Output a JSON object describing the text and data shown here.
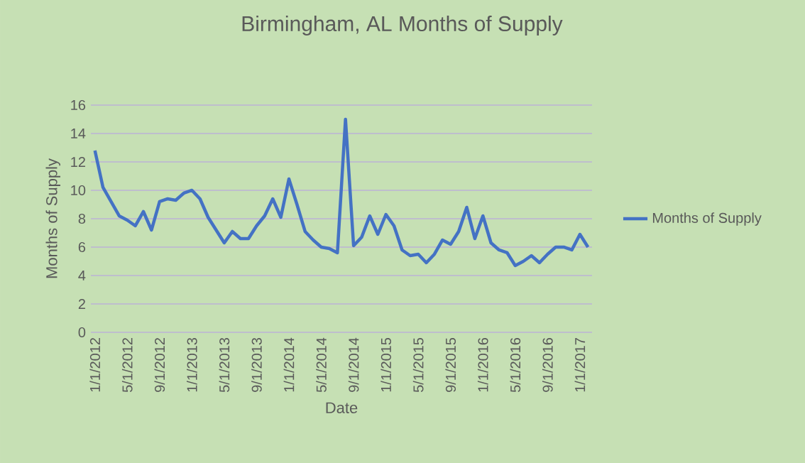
{
  "chart_data": {
    "type": "line",
    "title": "Birmingham, AL Months of Supply",
    "xlabel": "Date",
    "ylabel": "Months of Supply",
    "categories": [
      "1/1/2012",
      null,
      null,
      null,
      "5/1/2012",
      null,
      null,
      null,
      "9/1/2012",
      null,
      null,
      null,
      "1/1/2013",
      null,
      null,
      null,
      "5/1/2013",
      null,
      null,
      null,
      "9/1/2013",
      null,
      null,
      null,
      "1/1/2014",
      null,
      null,
      null,
      "5/1/2014",
      null,
      null,
      null,
      "9/1/2014",
      null,
      null,
      null,
      "1/1/2015",
      null,
      null,
      null,
      "5/1/2015",
      null,
      null,
      null,
      "9/1/2015",
      null,
      null,
      null,
      "1/1/2016",
      null,
      null,
      null,
      "5/1/2016",
      null,
      null,
      null,
      "9/1/2016",
      null,
      null,
      null,
      "1/1/2017",
      null
    ],
    "series": [
      {
        "name": "Months of Supply",
        "color": "#4472c4",
        "values": [
          12.8,
          10.2,
          9.2,
          8.2,
          7.9,
          7.5,
          8.5,
          7.2,
          9.2,
          9.4,
          9.3,
          9.8,
          10.0,
          9.4,
          8.1,
          7.2,
          6.3,
          7.1,
          6.6,
          6.6,
          7.5,
          8.2,
          9.4,
          8.1,
          10.8,
          9.0,
          7.1,
          6.5,
          6.0,
          5.9,
          5.6,
          15.0,
          6.1,
          6.7,
          8.2,
          6.9,
          8.3,
          7.5,
          5.8,
          5.4,
          5.5,
          4.9,
          5.5,
          6.5,
          6.2,
          7.1,
          8.8,
          6.6,
          8.2,
          6.3,
          5.8,
          5.6,
          4.7,
          5.0,
          5.4,
          4.9,
          5.5,
          6.0,
          6.0,
          5.8,
          6.9,
          6.0
        ]
      }
    ],
    "ylim": [
      0,
      16
    ],
    "yticks": [
      0,
      2,
      4,
      6,
      8,
      10,
      12,
      14,
      16
    ],
    "grid": "y",
    "legend": "right",
    "marker": "none",
    "line_style": "solid"
  }
}
